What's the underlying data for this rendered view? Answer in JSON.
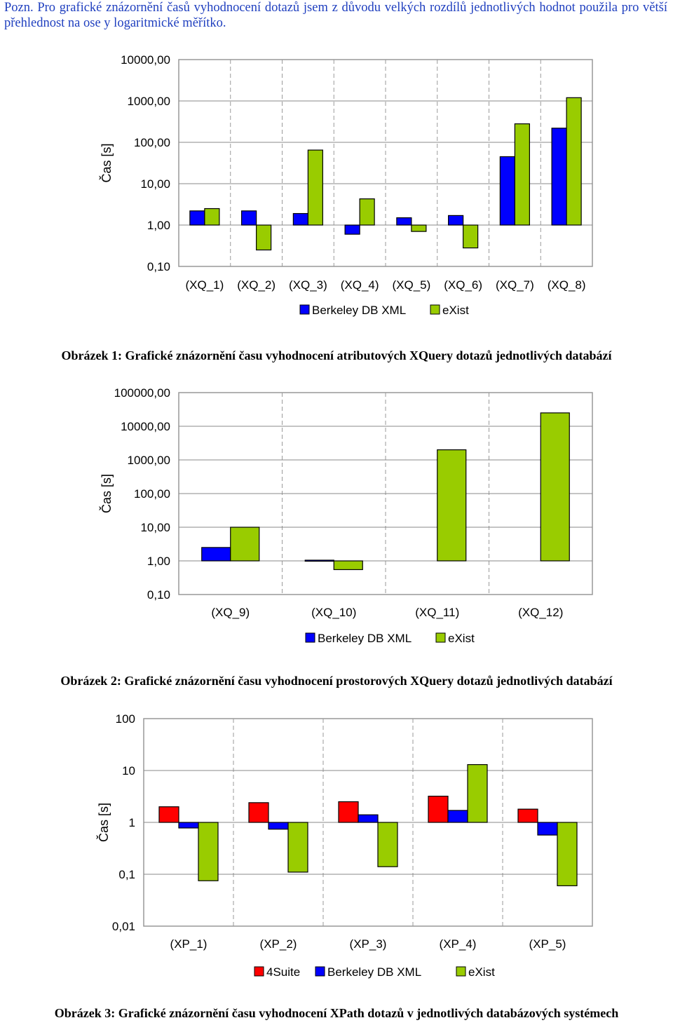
{
  "note": {
    "lead": "Pozn.",
    "text": "Pro grafické znázornění časů vyhodnocení dotazů jsem z důvodu velkých rozdílů jednotlivých hodnot použila pro větší přehlednost na ose y logaritmické měřítko."
  },
  "captions": [
    "Obrázek 1: Grafické znázornění času vyhodnocení atributových XQuery dotazů jednotlivých databází",
    "Obrázek 2: Grafické znázornění času vyhodnocení prostorových XQuery dotazů jednotlivých databází",
    "Obrázek 3: Grafické znázornění času vyhodnocení XPath dotazů v jednotlivých databázových systémech"
  ],
  "colors": {
    "4Suite": "#ff0000",
    "Berkeley DB XML": "#0000ff",
    "eXist": "#99cc00"
  },
  "chart_data": [
    {
      "type": "bar",
      "title": "",
      "ylabel": "Čas [s]",
      "yscale": "log",
      "ylim": [
        0.1,
        10000
      ],
      "yticks": [
        "10000,00",
        "1000,00",
        "100,00",
        "10,00",
        "1,00",
        "0,10"
      ],
      "categories": [
        "(XQ_1)",
        "(XQ_2)",
        "(XQ_3)",
        "(XQ_4)",
        "(XQ_5)",
        "(XQ_6)",
        "(XQ_7)",
        "(XQ_8)"
      ],
      "legend_position": "bottom",
      "series": [
        {
          "name": "Berkeley DB XML",
          "values": [
            2.2,
            2.2,
            1.9,
            0.6,
            1.5,
            1.7,
            45,
            220
          ]
        },
        {
          "name": "eXist",
          "values": [
            2.5,
            0.25,
            65,
            4.3,
            0.7,
            0.28,
            280,
            1200
          ]
        }
      ]
    },
    {
      "type": "bar",
      "title": "",
      "ylabel": "Čas [s]",
      "yscale": "log",
      "ylim": [
        0.1,
        100000
      ],
      "yticks": [
        "100000,00",
        "10000,00",
        "1000,00",
        "100,00",
        "10,00",
        "1,00",
        "0,10"
      ],
      "categories": [
        "(XQ_9)",
        "(XQ_10)",
        "(XQ_11)",
        "(XQ_12)"
      ],
      "legend_position": "bottom",
      "series": [
        {
          "name": "Berkeley DB XML",
          "values": [
            2.5,
            1.05,
            null,
            null
          ]
        },
        {
          "name": "eXist",
          "values": [
            10,
            0.55,
            2000,
            25000
          ]
        }
      ]
    },
    {
      "type": "bar",
      "title": "",
      "ylabel": "Čas [s]",
      "yscale": "log",
      "ylim": [
        0.01,
        100
      ],
      "yticks": [
        "100",
        "10",
        "1",
        "0,1",
        "0,01"
      ],
      "categories": [
        "(XP_1)",
        "(XP_2)",
        "(XP_3)",
        "(XP_4)",
        "(XP_5)"
      ],
      "legend_position": "bottom",
      "series": [
        {
          "name": "4Suite",
          "values": [
            2.0,
            2.4,
            2.5,
            3.2,
            1.8
          ]
        },
        {
          "name": "Berkeley DB XML",
          "values": [
            0.78,
            0.74,
            1.4,
            1.7,
            0.57
          ]
        },
        {
          "name": "eXist",
          "values": [
            0.075,
            0.11,
            0.14,
            13,
            0.06
          ]
        }
      ]
    }
  ]
}
